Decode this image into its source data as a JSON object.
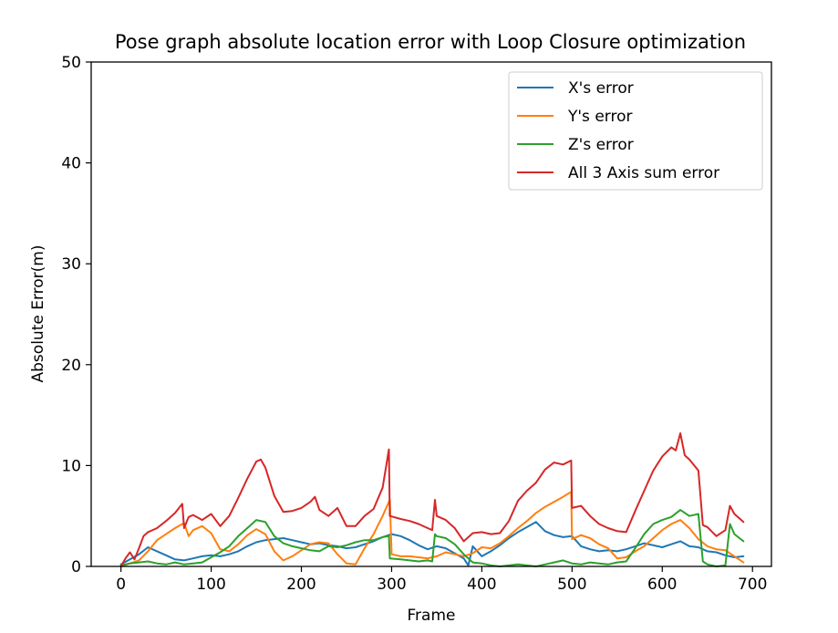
{
  "chart_data": {
    "type": "line",
    "title": "Pose graph absolute location error with Loop Closure optimization",
    "xlabel": "Frame",
    "ylabel": "Absolute Error(m)",
    "xlim": [
      -33,
      721
    ],
    "ylim": [
      0,
      50
    ],
    "xticks": [
      0,
      100,
      200,
      300,
      400,
      500,
      600,
      700
    ],
    "yticks": [
      0,
      10,
      20,
      30,
      40,
      50
    ],
    "grid": false,
    "legend_position": "top-right",
    "series": [
      {
        "name": "X's error",
        "color": "#1f77b4",
        "x": [
          0,
          10,
          20,
          30,
          40,
          50,
          60,
          70,
          80,
          90,
          100,
          110,
          120,
          130,
          140,
          150,
          160,
          170,
          180,
          190,
          200,
          210,
          220,
          230,
          240,
          250,
          260,
          270,
          280,
          290,
          300,
          310,
          320,
          330,
          340,
          350,
          360,
          370,
          380,
          385,
          390,
          400,
          410,
          420,
          430,
          440,
          450,
          460,
          470,
          480,
          490,
          500,
          510,
          520,
          530,
          540,
          550,
          560,
          570,
          580,
          590,
          600,
          610,
          620,
          630,
          640,
          650,
          660,
          670,
          680,
          690
        ],
        "y": [
          0.2,
          0.7,
          1.2,
          1.9,
          1.5,
          1.1,
          0.7,
          0.6,
          0.8,
          1.0,
          1.1,
          1.0,
          1.2,
          1.5,
          2.0,
          2.4,
          2.6,
          2.7,
          2.8,
          2.6,
          2.4,
          2.2,
          2.3,
          2.1,
          2.0,
          1.8,
          1.9,
          2.2,
          2.5,
          2.9,
          3.2,
          3.0,
          2.6,
          2.1,
          1.7,
          2.0,
          1.8,
          1.3,
          0.8,
          0.1,
          2.0,
          1.0,
          1.5,
          2.1,
          2.8,
          3.4,
          3.9,
          4.4,
          3.5,
          3.1,
          2.9,
          3.0,
          2.0,
          1.7,
          1.5,
          1.6,
          1.5,
          1.7,
          2.0,
          2.3,
          2.1,
          1.9,
          2.2,
          2.5,
          2.0,
          1.9,
          1.5,
          1.4,
          1.1,
          0.9,
          1.0
        ]
      },
      {
        "name": "Y's error",
        "color": "#ff7f0e",
        "x": [
          0,
          10,
          20,
          30,
          40,
          50,
          60,
          70,
          75,
          80,
          90,
          100,
          110,
          120,
          130,
          140,
          150,
          160,
          170,
          180,
          190,
          200,
          210,
          220,
          230,
          240,
          250,
          260,
          270,
          280,
          290,
          298,
          300,
          310,
          320,
          330,
          340,
          350,
          360,
          370,
          380,
          390,
          400,
          410,
          420,
          430,
          440,
          450,
          460,
          470,
          480,
          490,
          499,
          500,
          510,
          520,
          530,
          540,
          550,
          560,
          570,
          580,
          590,
          600,
          610,
          620,
          630,
          640,
          650,
          660,
          670,
          680,
          690
        ],
        "y": [
          0.0,
          0.3,
          0.6,
          1.5,
          2.6,
          3.2,
          3.8,
          4.3,
          3.0,
          3.6,
          4.0,
          3.3,
          1.7,
          1.5,
          2.2,
          3.1,
          3.7,
          3.2,
          1.5,
          0.6,
          1.0,
          1.6,
          2.2,
          2.4,
          2.3,
          1.2,
          0.3,
          0.2,
          1.8,
          3.2,
          5.0,
          6.6,
          1.2,
          1.0,
          1.0,
          0.9,
          0.8,
          1.0,
          1.4,
          1.2,
          1.0,
          1.3,
          1.9,
          1.8,
          2.3,
          3.0,
          3.8,
          4.5,
          5.3,
          5.9,
          6.4,
          6.9,
          7.4,
          2.7,
          3.1,
          2.8,
          2.2,
          1.8,
          0.8,
          0.9,
          1.5,
          2.0,
          2.8,
          3.6,
          4.2,
          4.6,
          3.8,
          2.7,
          2.0,
          1.7,
          1.6,
          1.0,
          0.4
        ]
      },
      {
        "name": "Z's error",
        "color": "#2ca02c",
        "x": [
          0,
          10,
          20,
          30,
          40,
          50,
          60,
          70,
          80,
          90,
          100,
          110,
          120,
          130,
          140,
          150,
          160,
          170,
          180,
          190,
          200,
          210,
          220,
          230,
          240,
          250,
          260,
          270,
          280,
          290,
          297,
          298,
          310,
          320,
          330,
          340,
          345,
          348,
          350,
          360,
          370,
          380,
          390,
          400,
          410,
          420,
          430,
          440,
          450,
          460,
          470,
          480,
          490,
          500,
          510,
          520,
          530,
          540,
          550,
          560,
          570,
          580,
          590,
          600,
          610,
          620,
          630,
          640,
          645,
          650,
          660,
          670,
          675,
          680,
          690
        ],
        "y": [
          0.1,
          0.3,
          0.4,
          0.5,
          0.3,
          0.2,
          0.4,
          0.2,
          0.3,
          0.4,
          0.9,
          1.4,
          2.0,
          3.0,
          3.8,
          4.6,
          4.4,
          3.0,
          2.3,
          2.0,
          1.8,
          1.6,
          1.5,
          2.0,
          1.9,
          2.1,
          2.4,
          2.6,
          2.6,
          2.9,
          3.0,
          0.8,
          0.7,
          0.6,
          0.5,
          0.6,
          0.5,
          3.2,
          3.0,
          2.8,
          2.2,
          1.2,
          0.4,
          0.3,
          0.1,
          0.0,
          0.1,
          0.2,
          0.1,
          0.0,
          0.2,
          0.4,
          0.6,
          0.3,
          0.2,
          0.4,
          0.3,
          0.2,
          0.4,
          0.5,
          1.8,
          3.2,
          4.2,
          4.6,
          4.9,
          5.6,
          5.0,
          5.2,
          0.5,
          0.2,
          0.0,
          0.1,
          4.2,
          3.2,
          2.5
        ]
      },
      {
        "name": "All 3 Axis sum error",
        "color": "#d62728",
        "x": [
          0,
          5,
          10,
          15,
          20,
          25,
          30,
          40,
          50,
          60,
          68,
          70,
          75,
          80,
          90,
          100,
          110,
          120,
          130,
          140,
          150,
          155,
          160,
          170,
          180,
          190,
          200,
          210,
          215,
          220,
          230,
          240,
          250,
          260,
          270,
          280,
          290,
          297,
          298,
          310,
          320,
          330,
          340,
          345,
          348,
          350,
          360,
          370,
          380,
          390,
          400,
          410,
          420,
          430,
          440,
          450,
          460,
          470,
          480,
          490,
          499,
          500,
          510,
          520,
          530,
          540,
          550,
          560,
          570,
          580,
          590,
          600,
          610,
          615,
          620,
          625,
          630,
          640,
          645,
          650,
          660,
          670,
          675,
          680,
          690
        ],
        "y": [
          0.0,
          0.8,
          1.4,
          0.7,
          1.8,
          3.0,
          3.4,
          3.8,
          4.5,
          5.3,
          6.2,
          3.8,
          4.9,
          5.1,
          4.6,
          5.2,
          4.0,
          5.0,
          6.8,
          8.7,
          10.4,
          10.6,
          9.8,
          7.0,
          5.4,
          5.5,
          5.8,
          6.4,
          6.9,
          5.6,
          5.0,
          5.8,
          4.0,
          4.0,
          5.0,
          5.7,
          7.8,
          11.6,
          5.0,
          4.7,
          4.5,
          4.2,
          3.8,
          3.6,
          6.6,
          5.0,
          4.6,
          3.8,
          2.5,
          3.3,
          3.4,
          3.2,
          3.3,
          4.5,
          6.5,
          7.5,
          8.3,
          9.6,
          10.3,
          10.1,
          10.5,
          5.8,
          6.0,
          5.0,
          4.2,
          3.8,
          3.5,
          3.4,
          5.5,
          7.5,
          9.5,
          10.9,
          11.8,
          11.5,
          13.2,
          11.0,
          10.6,
          9.5,
          4.1,
          3.9,
          3.0,
          3.6,
          6.0,
          5.2,
          4.4
        ]
      }
    ]
  }
}
